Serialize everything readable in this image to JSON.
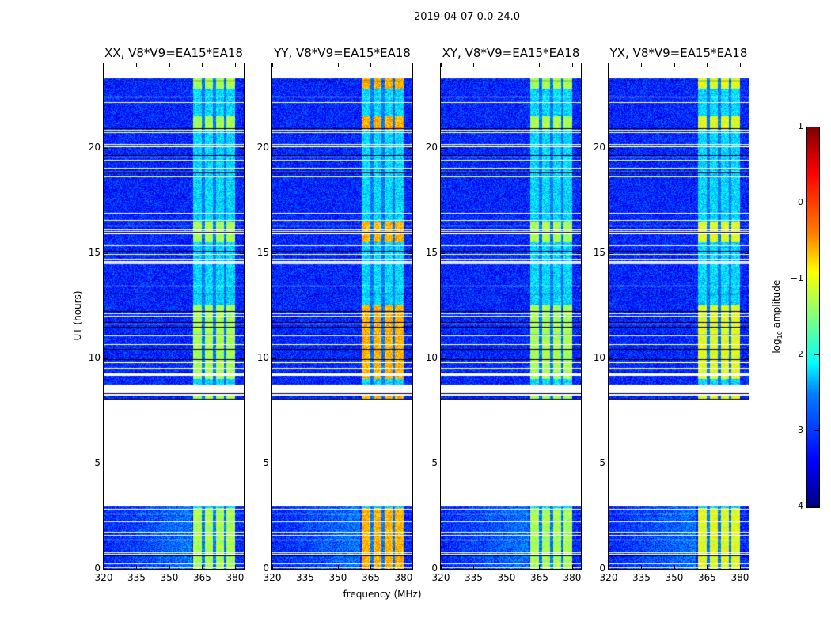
{
  "suptitle": "2019-04-07 0.0-24.0",
  "chart_data": {
    "type": "heatmap",
    "panels": [
      {
        "title": "XX, V8*V9=EA15*EA18",
        "rfi_level": -1.5,
        "bright_level": -1.3
      },
      {
        "title": "YY, V8*V9=EA15*EA18",
        "rfi_level": -1.0,
        "bright_level": -0.5
      },
      {
        "title": "XY, V8*V9=EA15*EA18",
        "rfi_level": -1.5,
        "bright_level": -1.3
      },
      {
        "title": "YX, V8*V9=EA15*EA18",
        "rfi_level": -1.3,
        "bright_level": -1.0
      }
    ],
    "xlabel": "frequency (MHz)",
    "ylabel": "UT (hours)",
    "xlim": [
      320,
      384
    ],
    "ylim": [
      0,
      24
    ],
    "xticks": [
      320,
      335,
      350,
      365,
      380
    ],
    "yticks": [
      0,
      5,
      10,
      15,
      20
    ],
    "data_time_segments": [
      [
        0,
        2.95
      ],
      [
        8.05,
        8.35
      ],
      [
        8.75,
        23.3
      ]
    ],
    "rfi_band_mhz": [
      361,
      380
    ],
    "rfi_bright_times": [
      [
        0,
        2.9
      ],
      [
        8.05,
        8.35
      ],
      [
        9,
        12.5
      ],
      [
        15.5,
        16.5
      ],
      [
        20.8,
        21.5
      ],
      [
        22.8,
        23.3
      ]
    ],
    "background_level": -3.2,
    "colorbar": {
      "label": "log10 amplitude",
      "label_base": "log",
      "label_sub": "10",
      "label_rest": " amplitude",
      "ticks": [
        "1",
        "0",
        "−1",
        "−2",
        "−3",
        "−4"
      ],
      "range": [
        -4,
        1
      ],
      "colormap": "jet"
    }
  }
}
